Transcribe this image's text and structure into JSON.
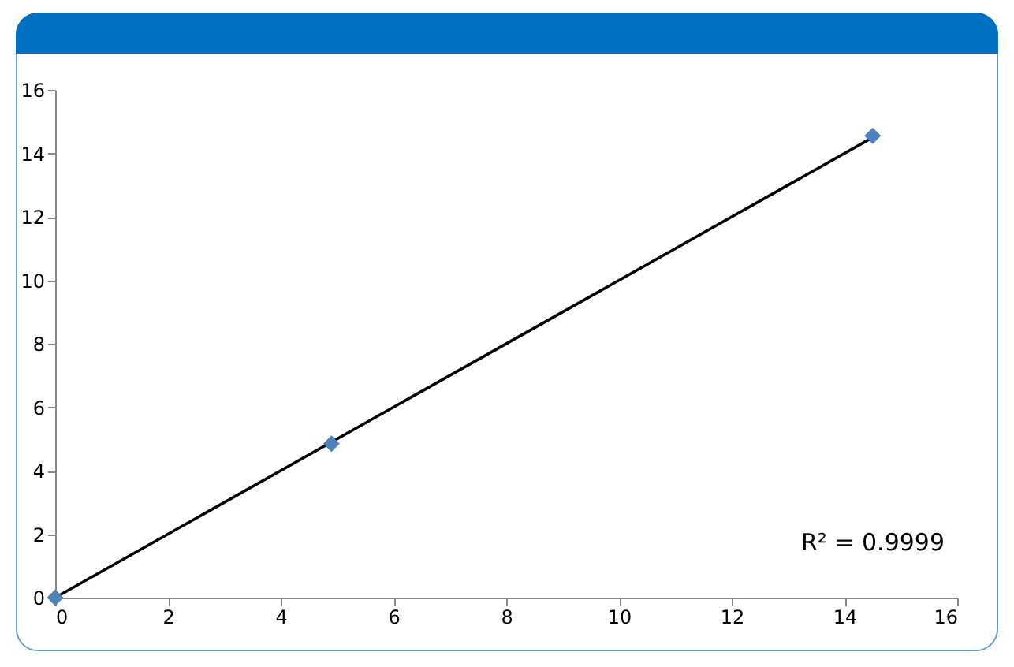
{
  "chart_data": {
    "type": "scatter",
    "xlim": [
      0,
      16
    ],
    "ylim": [
      0,
      16
    ],
    "xticks": [
      0,
      2,
      4,
      6,
      8,
      10,
      12,
      14,
      16
    ],
    "yticks": [
      0,
      2,
      4,
      6,
      8,
      10,
      12,
      14,
      16
    ],
    "series": [
      {
        "marker": "diamond",
        "color": "#4f81bd",
        "x": [
          0,
          4.9,
          14.5
        ],
        "values": [
          0,
          4.85,
          14.55
        ]
      },
      {
        "type": "line",
        "marker": "none",
        "color": "#000000",
        "x": [
          0,
          14.5
        ],
        "values": [
          0,
          14.5
        ]
      }
    ],
    "annotations": [
      "R² = 0.9999"
    ]
  }
}
